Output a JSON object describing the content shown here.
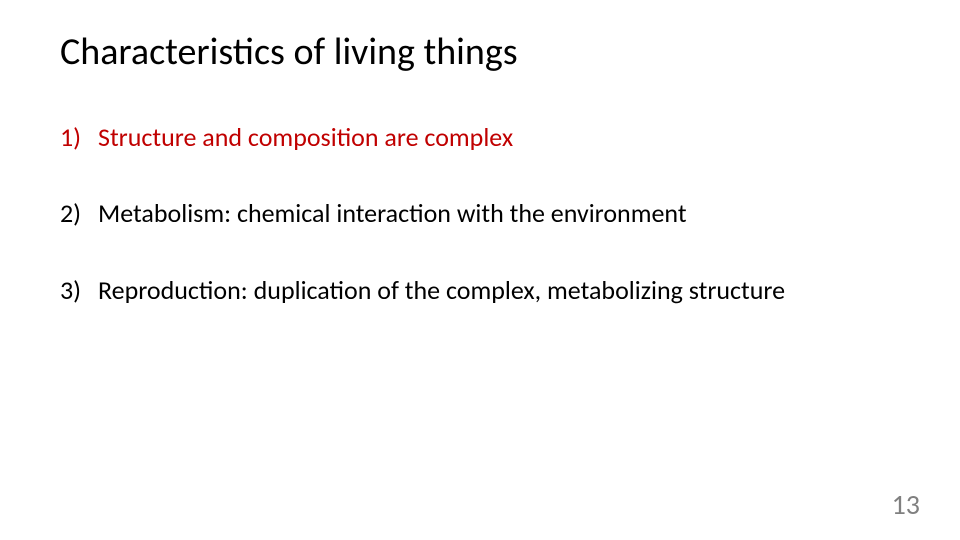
{
  "slide": {
    "title": "Characteristics of living things",
    "items": [
      {
        "number": "1)",
        "text": "Structure and composition are complex",
        "color": "#c00000"
      },
      {
        "number": "2)",
        "text": "Metabolism: chemical interaction with the environment",
        "color": "#000000"
      },
      {
        "number": "3)",
        "text": "Reproduction: duplication of the complex, metabolizing structure",
        "color": "#000000"
      }
    ],
    "page_number": "13",
    "background_color": "#ffffff",
    "title_fontsize": 38,
    "item_fontsize": 26,
    "page_number_fontsize": 28,
    "page_number_color": "#808080",
    "font_family": "Calibri"
  }
}
